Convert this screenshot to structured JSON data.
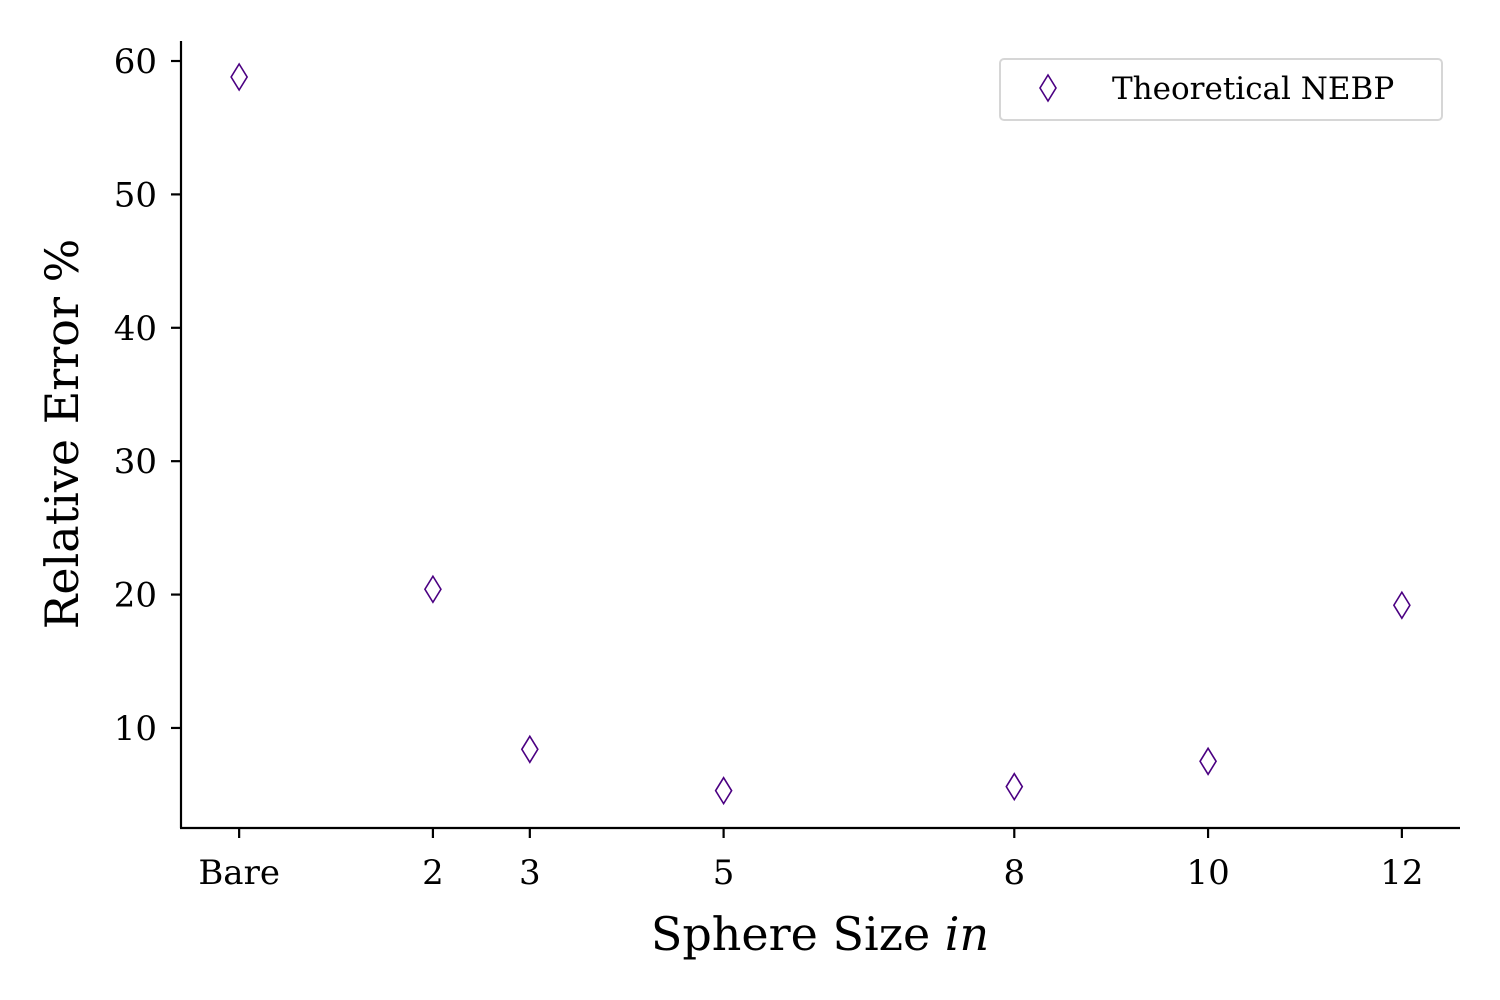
{
  "chart_data": {
    "type": "scatter",
    "x": [
      0,
      2,
      3,
      5,
      8,
      10,
      12
    ],
    "x_tick_labels": [
      "Bare",
      "2",
      "3",
      "5",
      "8",
      "10",
      "12"
    ],
    "y_ticks": [
      10,
      20,
      30,
      40,
      50,
      60
    ],
    "ylim": [
      2.5,
      61.5
    ],
    "xlim": [
      -0.6,
      12.6
    ],
    "xlabel": "Sphere Size",
    "xlabel_unit": "in",
    "ylabel": "Relative Error %",
    "series": [
      {
        "name": "Theoretical NEBP",
        "marker": "thin-diamond",
        "color": "#4b0082",
        "y": [
          58.8,
          20.4,
          8.4,
          5.3,
          5.6,
          7.5,
          19.2
        ]
      }
    ],
    "legend_position": "top-right",
    "grid": false
  }
}
